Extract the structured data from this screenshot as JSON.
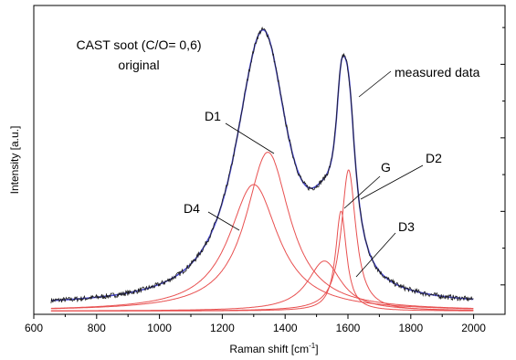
{
  "chart_data": {
    "type": "line",
    "title": "CAST soot (C/O= 0,6)",
    "subtitle": "original",
    "xlabel": "Raman shift [cm",
    "xlabel_sup": "-1",
    "xlabel_end": "]",
    "ylabel": "Intensity [a.u.]",
    "xlim": [
      600,
      2100
    ],
    "ylim": [
      0,
      1.05
    ],
    "x_ticks": [
      600,
      800,
      1000,
      1200,
      1400,
      1600,
      1800,
      2000
    ],
    "y_ticks_labeled": false,
    "grid": false,
    "colors": {
      "measured": "#1a1a1a",
      "fit": "#4a4ad0",
      "bands": "#e85050"
    },
    "annotations": {
      "measured": "measured data",
      "D1": "D1",
      "D2": "D2",
      "D3": "D3",
      "D4": "D4",
      "G": "G"
    },
    "baseline": 0.028,
    "bands": [
      {
        "name": "D1",
        "center": 1345,
        "height": 0.54,
        "width": 170
      },
      {
        "name": "D4",
        "center": 1300,
        "height": 0.43,
        "width": 190
      },
      {
        "name": "D3",
        "center": 1525,
        "height": 0.17,
        "width": 130
      },
      {
        "name": "G",
        "center": 1578,
        "height": 0.34,
        "width": 42
      },
      {
        "name": "D2",
        "center": 1602,
        "height": 0.48,
        "width": 56
      }
    ],
    "x_range": [
      655,
      2000
    ]
  }
}
